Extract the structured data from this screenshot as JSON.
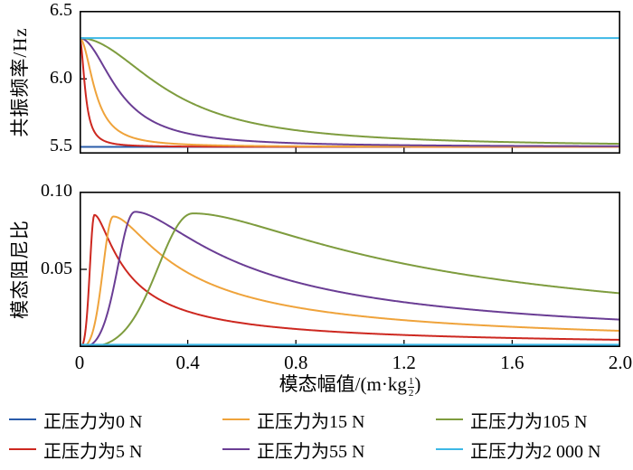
{
  "page": {
    "background": "#ffffff"
  },
  "chart_data": [
    {
      "type": "line",
      "title": "",
      "ylabel": "共振频率/Hz",
      "xlabel": "",
      "xlim": [
        0,
        2.0
      ],
      "ylim": [
        5.45,
        6.5
      ],
      "grid": false,
      "legend_position": "below-figure",
      "yticks": [
        {
          "v": 6.5,
          "label": "6.5"
        },
        {
          "v": 6.0,
          "label": "6.0"
        },
        {
          "v": 5.5,
          "label": "5.5"
        }
      ],
      "series": [
        {
          "name": "正压力为0 N",
          "color": "#2a5caa",
          "model": "flat",
          "value": 5.5
        },
        {
          "name": "正压力为5 N",
          "color": "#cd2820",
          "model": "freq",
          "f0": 6.3,
          "f_inf": 5.5,
          "a": 0.022
        },
        {
          "name": "正压力为15 N",
          "color": "#efa33b",
          "model": "freq",
          "f0": 6.3,
          "f_inf": 5.5,
          "a": 0.06
        },
        {
          "name": "正压力为55 N",
          "color": "#6a3d94",
          "model": "freq",
          "f0": 6.3,
          "f_inf": 5.5,
          "a": 0.15
        },
        {
          "name": "正压力为105 N",
          "color": "#7e9c3e",
          "model": "freq",
          "f0": 6.3,
          "f_inf": 5.5,
          "a": 0.34
        },
        {
          "name": "正压力为2 000 N",
          "color": "#3cb8e6",
          "model": "flat",
          "value": 6.3
        }
      ]
    },
    {
      "type": "line",
      "title": "",
      "ylabel": "模态阻尼比",
      "xlim": [
        0,
        2.0
      ],
      "ylim": [
        0,
        0.1
      ],
      "grid": false,
      "yticks": [
        {
          "v": 0.1,
          "label": "0.10"
        },
        {
          "v": 0.05,
          "label": "0.05"
        }
      ],
      "xticks": [
        {
          "v": 0,
          "label": "0"
        },
        {
          "v": 0.4,
          "label": "0.4"
        },
        {
          "v": 0.8,
          "label": "0.8"
        },
        {
          "v": 1.2,
          "label": "1.2"
        },
        {
          "v": 1.6,
          "label": "1.6"
        },
        {
          "v": 2.0,
          "label": "2.0"
        }
      ],
      "series": [
        {
          "name": "正压力为0 N",
          "color": "#2a5caa",
          "model": "flat",
          "value": 0.0007
        },
        {
          "name": "正压力为5 N",
          "color": "#cd2820",
          "model": "damp",
          "zp": 0.085,
          "xp": 0.055
        },
        {
          "name": "正压力为15 N",
          "color": "#efa33b",
          "model": "damp",
          "zp": 0.084,
          "xp": 0.125
        },
        {
          "name": "正压力为55 N",
          "color": "#6a3d94",
          "model": "damp",
          "zp": 0.087,
          "xp": 0.205
        },
        {
          "name": "正压力为105 N",
          "color": "#7e9c3e",
          "model": "damp",
          "zp": 0.086,
          "xp": 0.42
        },
        {
          "name": "正压力为2 000 N",
          "color": "#3cb8e6",
          "model": "flat",
          "value": 0.0015
        }
      ]
    }
  ],
  "xaxis": {
    "label_prefix": "模态幅值/(m·kg",
    "sup_num": "1",
    "sup_den": "2",
    "label_suffix": ")"
  },
  "legend": {
    "items": [
      {
        "label": "正压力为0 N",
        "color": "#2a5caa"
      },
      {
        "label": "正压力为15 N",
        "color": "#efa33b"
      },
      {
        "label": "正压力为105 N",
        "color": "#7e9c3e"
      },
      {
        "label": "正压力为5 N",
        "color": "#cd2820"
      },
      {
        "label": "正压力为55 N",
        "color": "#6a3d94"
      },
      {
        "label": "正压力为2 000 N",
        "color": "#3cb8e6"
      }
    ]
  }
}
